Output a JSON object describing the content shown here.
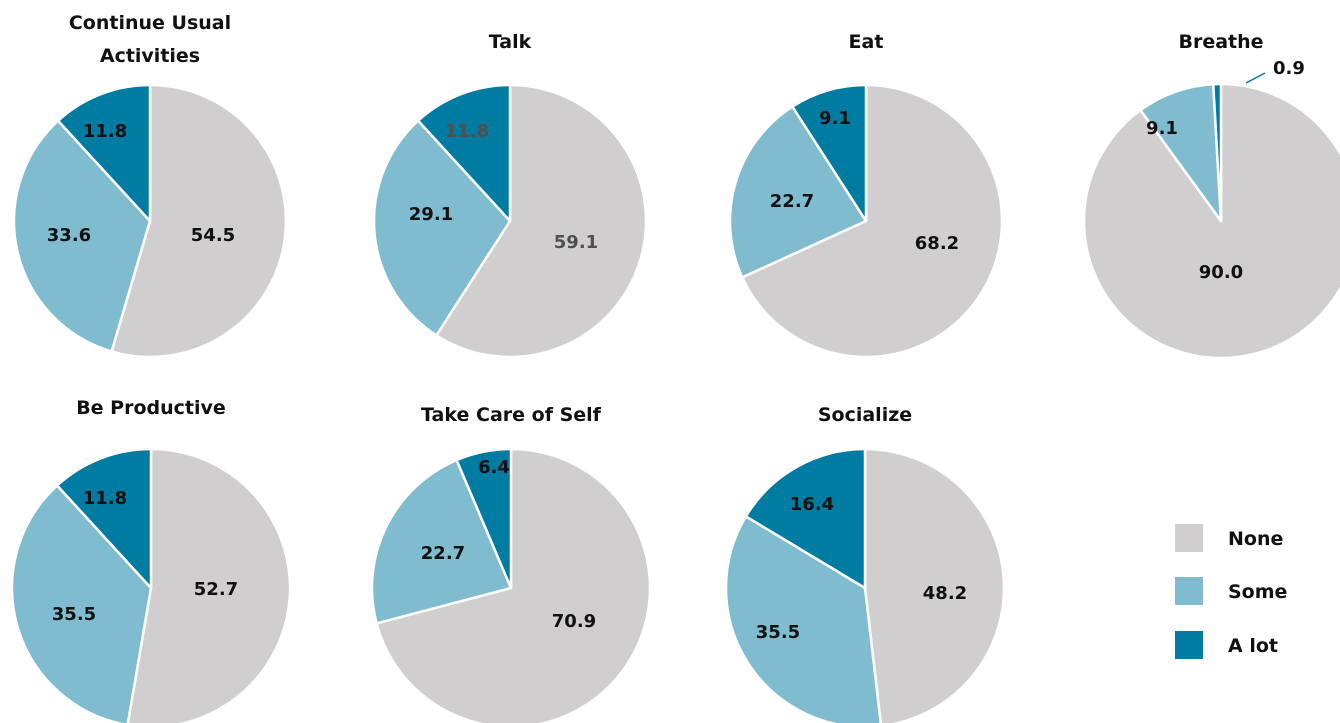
{
  "chart_data": [
    {
      "type": "pie",
      "title_lines": [
        "Continue Usual",
        "Activities"
      ],
      "categories": [
        "None",
        "Some",
        "A lot"
      ],
      "values": [
        54.5,
        33.6,
        11.8
      ],
      "labels": [
        "54.5",
        "33.6",
        "11.8"
      ]
    },
    {
      "type": "pie",
      "title_lines": [
        "Talk"
      ],
      "categories": [
        "None",
        "Some",
        "A lot"
      ],
      "values": [
        59.1,
        29.1,
        11.8
      ],
      "labels": [
        "59.1",
        "29.1",
        "11.8"
      ]
    },
    {
      "type": "pie",
      "title_lines": [
        "Eat"
      ],
      "categories": [
        "None",
        "Some",
        "A lot"
      ],
      "values": [
        68.2,
        22.7,
        9.1
      ],
      "labels": [
        "68.2",
        "22.7",
        "9.1"
      ]
    },
    {
      "type": "pie",
      "title_lines": [
        "Breathe"
      ],
      "categories": [
        "None",
        "Some",
        "A lot"
      ],
      "values": [
        90.0,
        9.1,
        0.9
      ],
      "labels": [
        "90.0",
        "9.1",
        "0.9"
      ]
    },
    {
      "type": "pie",
      "title_lines": [
        "Be Productive"
      ],
      "categories": [
        "None",
        "Some",
        "A lot"
      ],
      "values": [
        52.7,
        35.5,
        11.8
      ],
      "labels": [
        "52.7",
        "35.5",
        "11.8"
      ]
    },
    {
      "type": "pie",
      "title_lines": [
        "Take Care of Self"
      ],
      "categories": [
        "None",
        "Some",
        "A lot"
      ],
      "values": [
        70.9,
        22.7,
        6.4
      ],
      "labels": [
        "70.9",
        "22.7",
        "6.4"
      ]
    },
    {
      "type": "pie",
      "title_lines": [
        "Socialize"
      ],
      "categories": [
        "None",
        "Some",
        "A lot"
      ],
      "values": [
        48.2,
        35.5,
        16.4
      ],
      "labels": [
        "48.2",
        "35.5",
        "16.4"
      ]
    }
  ],
  "legend": {
    "placement": "bottom-right",
    "items": [
      {
        "label": "None",
        "color": "#d0cecf"
      },
      {
        "label": "Some",
        "color": "#80bcd0"
      },
      {
        "label": "A lot",
        "color": "#007ba2"
      }
    ]
  }
}
